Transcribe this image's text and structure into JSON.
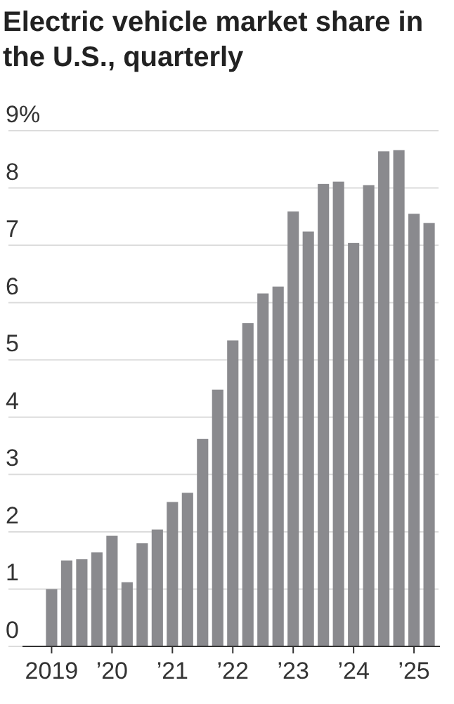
{
  "chart_data": {
    "type": "bar",
    "title": "Electric vehicle market share in the U.S., quarterly",
    "categories": [
      "2019",
      null,
      null,
      null,
      "’20",
      null,
      null,
      null,
      "’21",
      null,
      null,
      null,
      "’22",
      null,
      null,
      null,
      "’23",
      null,
      null,
      null,
      "’24",
      null,
      null,
      null,
      "’25",
      null
    ],
    "values": [
      1.0,
      1.5,
      1.52,
      1.64,
      1.93,
      1.12,
      1.8,
      2.04,
      2.52,
      2.68,
      3.62,
      4.48,
      5.34,
      5.64,
      6.16,
      6.28,
      7.59,
      7.24,
      8.07,
      8.11,
      7.04,
      8.05,
      8.64,
      8.66,
      7.55,
      7.39
    ],
    "color": "#8a8a8e",
    "ylim": [
      0,
      9
    ],
    "yticks": [
      0,
      1,
      2,
      3,
      4,
      5,
      6,
      7,
      8,
      {
        "value": 9,
        "label": "9%"
      }
    ],
    "grid": "y"
  }
}
